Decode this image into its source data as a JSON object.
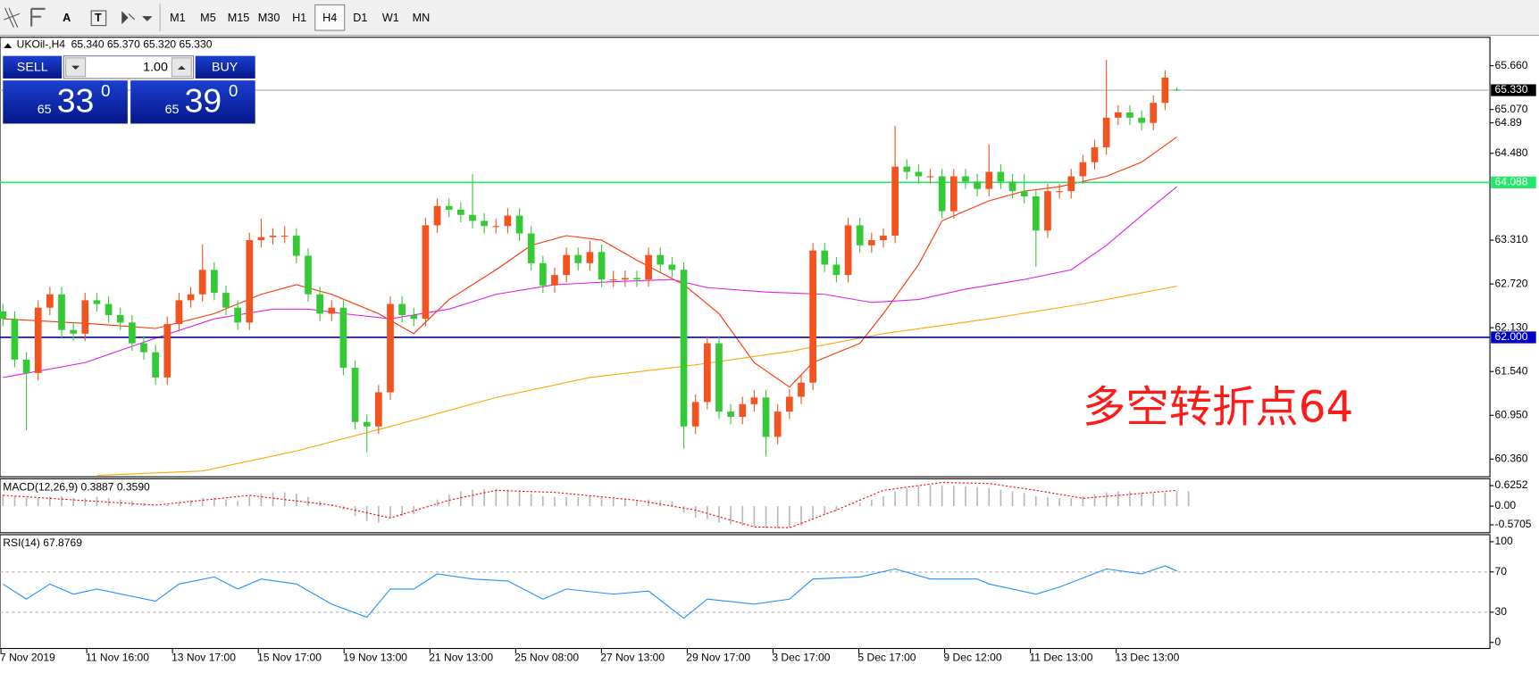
{
  "toolbar": {
    "tools": [
      "A",
      "T"
    ],
    "timeframes": [
      "M1",
      "M5",
      "M15",
      "M30",
      "H1",
      "H4",
      "D1",
      "W1",
      "MN"
    ],
    "active": "H4"
  },
  "header": {
    "symbol": "UKOil-,H4",
    "ohlc": "65.340 65.370 65.320 65.330"
  },
  "trade": {
    "sell": "SELL",
    "buy": "BUY",
    "volume": "1.00",
    "bid": {
      "big": "65",
      "main": "33",
      "sup": "0"
    },
    "ask": {
      "big": "65",
      "main": "39",
      "sup": "0"
    }
  },
  "chart_data": {
    "type": "candlestick",
    "categories": [
      "7 Nov 2019",
      "11 Nov 16:00",
      "13 Nov 17:00",
      "15 Nov 17:00",
      "19 Nov 13:00",
      "21 Nov 13:00",
      "25 Nov 08:00",
      "27 Nov 13:00",
      "29 Nov 17:00",
      "3 Dec 17:00",
      "5 Dec 17:00",
      "9 Dec 12:00",
      "11 Dec 13:00",
      "13 Dec 13:00"
    ],
    "up_color": "#f2531f",
    "down_color": "#36c936",
    "open": [
      62.35,
      62.25,
      61.7,
      61.52,
      62.4,
      62.58,
      62.1,
      62.05,
      62.5,
      62.45,
      62.3,
      62.2,
      61.92,
      61.8,
      61.46,
      62.18,
      62.5,
      62.58,
      62.91,
      62.6,
      62.4,
      62.2,
      63.31,
      63.35,
      63.37,
      63.37,
      63.1,
      62.58,
      62.32,
      62.4,
      61.59,
      60.86,
      60.8,
      61.26,
      62.45,
      62.3,
      62.25,
      63.51,
      63.77,
      63.72,
      63.65,
      63.57,
      63.5,
      63.5,
      63.64,
      63.4,
      63.0,
      62.7,
      62.84,
      63.11,
      63.0,
      63.15,
      62.78,
      62.78,
      62.8,
      62.78,
      63.11,
      62.98,
      62.91,
      60.8,
      61.13,
      61.92,
      61.0,
      60.93,
      61.1,
      61.19,
      60.66,
      61.0,
      61.2,
      61.39,
      63.17,
      62.98,
      62.84,
      63.51,
      63.24,
      63.31,
      63.37,
      64.3,
      64.23,
      64.17,
      64.17,
      63.7,
      64.17,
      64.1,
      64.0,
      64.23,
      64.1,
      63.97,
      63.9,
      63.44,
      63.97,
      63.97,
      64.17,
      64.36,
      64.56,
      64.96,
      65.03,
      64.96,
      64.89,
      65.16,
      65.34
    ],
    "high": [
      62.45,
      62.35,
      61.8,
      62.5,
      62.68,
      62.68,
      62.2,
      62.6,
      62.6,
      62.55,
      62.4,
      62.3,
      62.02,
      61.9,
      62.28,
      62.6,
      62.68,
      63.25,
      63.01,
      62.7,
      62.5,
      63.41,
      63.6,
      63.47,
      63.5,
      63.47,
      63.2,
      62.68,
      62.5,
      62.5,
      61.69,
      60.96,
      61.36,
      62.55,
      62.55,
      62.4,
      63.61,
      63.87,
      63.87,
      63.82,
      64.2,
      63.67,
      63.6,
      63.74,
      63.74,
      63.5,
      63.1,
      62.94,
      63.21,
      63.21,
      63.3,
      63.25,
      62.9,
      62.9,
      62.9,
      63.21,
      63.21,
      63.08,
      63.01,
      61.23,
      62.02,
      62.02,
      61.1,
      61.2,
      61.29,
      61.29,
      61.1,
      61.3,
      61.49,
      63.27,
      63.27,
      63.08,
      63.61,
      63.61,
      63.41,
      63.47,
      64.85,
      64.4,
      64.33,
      64.27,
      64.27,
      64.27,
      64.27,
      64.2,
      64.6,
      64.33,
      64.2,
      64.2,
      64.0,
      64.07,
      64.07,
      64.27,
      64.46,
      64.66,
      65.74,
      65.13,
      65.13,
      65.06,
      65.26,
      65.6,
      65.37
    ],
    "low": [
      62.15,
      61.6,
      60.75,
      61.42,
      62.3,
      62.0,
      61.95,
      61.95,
      62.35,
      62.2,
      62.1,
      61.82,
      61.7,
      61.36,
      61.36,
      62.08,
      62.4,
      62.48,
      62.5,
      62.3,
      62.1,
      62.1,
      63.21,
      63.25,
      63.27,
      63.0,
      62.48,
      62.22,
      62.22,
      61.49,
      60.76,
      60.45,
      60.7,
      61.16,
      62.2,
      62.15,
      62.15,
      63.41,
      63.62,
      63.55,
      63.47,
      63.4,
      63.4,
      63.4,
      63.3,
      62.9,
      62.6,
      62.6,
      62.74,
      62.9,
      62.9,
      62.68,
      62.68,
      62.68,
      62.68,
      62.68,
      62.88,
      62.81,
      60.5,
      60.7,
      61.03,
      60.9,
      60.83,
      60.83,
      61.0,
      60.4,
      60.56,
      60.9,
      61.1,
      61.29,
      62.88,
      62.74,
      62.74,
      63.14,
      63.14,
      63.21,
      63.27,
      64.13,
      64.07,
      64.07,
      63.6,
      63.6,
      64.0,
      63.9,
      63.9,
      64.0,
      63.87,
      63.8,
      62.95,
      63.34,
      63.87,
      63.87,
      64.07,
      64.26,
      64.46,
      64.86,
      64.86,
      64.79,
      64.79,
      65.06,
      65.32
    ],
    "close": [
      62.25,
      61.7,
      61.52,
      62.4,
      62.58,
      62.1,
      62.05,
      62.5,
      62.45,
      62.3,
      62.2,
      61.92,
      61.8,
      61.46,
      62.18,
      62.5,
      62.58,
      62.91,
      62.6,
      62.4,
      62.2,
      63.31,
      63.35,
      63.37,
      63.37,
      63.1,
      62.58,
      62.32,
      62.4,
      61.59,
      60.86,
      60.8,
      61.26,
      62.45,
      62.3,
      62.25,
      63.51,
      63.77,
      63.72,
      63.65,
      63.57,
      63.5,
      63.5,
      63.64,
      63.4,
      63.0,
      62.7,
      62.84,
      63.11,
      63.0,
      63.15,
      62.78,
      62.78,
      62.8,
      62.78,
      63.11,
      62.98,
      62.91,
      60.8,
      61.13,
      61.92,
      61.0,
      60.93,
      61.1,
      61.19,
      60.66,
      61.0,
      61.2,
      61.39,
      63.17,
      62.98,
      62.84,
      63.51,
      63.24,
      63.31,
      63.37,
      64.3,
      64.23,
      64.17,
      64.17,
      63.7,
      64.17,
      64.1,
      64.0,
      64.23,
      64.1,
      63.97,
      63.9,
      63.44,
      63.97,
      63.97,
      64.17,
      64.36,
      64.56,
      64.96,
      65.03,
      64.96,
      64.89,
      65.16,
      65.5,
      65.33
    ],
    "ma": [
      {
        "color": "#ff3300",
        "x": [
          0,
          8,
          13,
          18,
          22,
          25,
          28,
          32,
          35,
          38,
          42,
          45,
          48,
          51,
          54,
          58,
          61,
          64,
          67,
          69,
          73,
          75,
          78,
          80,
          84,
          87,
          90,
          94,
          97,
          100
        ],
        "values": [
          62.25,
          62.18,
          62.12,
          62.32,
          62.58,
          62.71,
          62.58,
          62.32,
          62.05,
          62.51,
          62.91,
          63.24,
          63.37,
          63.31,
          63.04,
          62.71,
          62.32,
          61.66,
          61.33,
          61.66,
          61.92,
          62.32,
          62.98,
          63.57,
          63.84,
          63.97,
          64.03,
          64.17,
          64.36,
          64.7
        ]
      },
      {
        "color": "#e21ee2",
        "x": [
          0,
          7,
          13,
          18,
          23,
          26,
          29,
          33,
          38,
          42,
          47,
          52,
          57,
          60,
          65,
          70,
          74,
          78,
          82,
          87,
          91,
          94,
          97,
          100
        ],
        "values": [
          61.46,
          61.66,
          61.99,
          62.25,
          62.38,
          62.38,
          62.32,
          62.25,
          62.38,
          62.58,
          62.71,
          62.75,
          62.78,
          62.67,
          62.61,
          62.58,
          62.47,
          62.51,
          62.65,
          62.78,
          62.91,
          63.24,
          63.64,
          64.03
        ]
      },
      {
        "color": "#ffa500",
        "x": [
          8,
          17,
          25,
          33,
          42,
          50,
          59,
          67,
          75,
          84,
          92,
          100
        ],
        "values": [
          60.14,
          60.2,
          60.47,
          60.8,
          61.19,
          61.46,
          61.63,
          61.81,
          62.05,
          62.25,
          62.45,
          62.69
        ]
      }
    ],
    "ylim": [
      60.135,
      66.043
    ],
    "yticks": [
      {
        "value": 65.66,
        "label": "65.660"
      },
      {
        "value": 65.07,
        "label": "65.070"
      },
      {
        "value": 64.48,
        "label": "64.480"
      },
      64.89,
      {
        "value": 63.31,
        "label": "63.310"
      },
      {
        "value": 62.72,
        "label": "62.720"
      },
      {
        "value": 62.13,
        "label": "62.130"
      },
      {
        "value": 61.54,
        "label": "61.540"
      },
      {
        "value": 60.95,
        "label": "60.950"
      },
      {
        "value": 60.36,
        "label": "60.360"
      }
    ],
    "levels": [
      {
        "value": 64.088,
        "color": "#22e86a"
      },
      {
        "value": 62,
        "label": "62.000",
        "color": "#0000c8"
      }
    ],
    "current": {
      "value": 65.33,
      "label": "65.330"
    },
    "annotation": "多空转折点64",
    "macd": {
      "label": "MACD(12,26,9) 0.3887 0.3590",
      "ylim": [
        -0.81,
        0.834
      ],
      "yticks": [
        0.6252,
        {
          "value": 0,
          "label": "0.00"
        },
        -0.5705
      ],
      "histogram": [
        0.35,
        0.3,
        0.25,
        0.25,
        0.3,
        0.3,
        0.25,
        0.25,
        0.28,
        0.25,
        0.2,
        0.15,
        0.1,
        0.0,
        0.05,
        0.12,
        0.18,
        0.25,
        0.25,
        0.2,
        0.15,
        0.3,
        0.38,
        0.42,
        0.42,
        0.38,
        0.28,
        0.15,
        0.05,
        -0.1,
        -0.3,
        -0.45,
        -0.5,
        -0.35,
        -0.3,
        -0.25,
        0.0,
        0.2,
        0.35,
        0.45,
        0.5,
        0.52,
        0.52,
        0.5,
        0.45,
        0.38,
        0.3,
        0.28,
        0.28,
        0.28,
        0.3,
        0.25,
        0.22,
        0.2,
        0.18,
        0.2,
        0.18,
        0.15,
        -0.2,
        -0.35,
        -0.4,
        -0.5,
        -0.55,
        -0.6,
        -0.62,
        -0.68,
        -0.68,
        -0.65,
        -0.6,
        -0.35,
        -0.25,
        -0.15,
        0.0,
        0.1,
        0.2,
        0.3,
        0.45,
        0.55,
        0.62,
        0.65,
        0.62,
        0.62,
        0.6,
        0.58,
        0.55,
        0.5,
        0.45,
        0.4,
        0.3,
        0.28,
        0.25,
        0.25,
        0.3,
        0.35,
        0.42,
        0.45,
        0.45,
        0.42,
        0.4,
        0.42,
        0.45,
        0.46
      ],
      "signal": {
        "x": [
          0,
          13,
          21,
          28,
          33,
          38,
          42,
          47,
          54,
          59,
          64,
          67,
          71,
          75,
          80,
          84,
          88,
          92,
          96,
          100
        ],
        "values": [
          0.33,
          0.03,
          0.33,
          0.03,
          -0.36,
          0.18,
          0.48,
          0.42,
          0.18,
          -0.12,
          -0.63,
          -0.66,
          -0.12,
          0.48,
          0.72,
          0.69,
          0.48,
          0.24,
          0.36,
          0.48
        ]
      }
    },
    "rsi": {
      "label": "RSI(14) 67.8769",
      "ylim": [
        -6,
        107
      ],
      "yticks": [
        100,
        70,
        30,
        0
      ],
      "levels": [
        70,
        30
      ],
      "color": "#1e90ff",
      "x": [
        0,
        2,
        4,
        6,
        8,
        13,
        15,
        18,
        20,
        22,
        25,
        28,
        31,
        33,
        35,
        37,
        40,
        43,
        46,
        48,
        52,
        55,
        58,
        60,
        64,
        67,
        69,
        73,
        76,
        79,
        83,
        84,
        88,
        90,
        94,
        97,
        99,
        100
      ],
      "values": [
        58,
        43,
        58,
        48,
        53,
        41,
        58,
        65,
        53,
        63,
        58,
        38,
        25,
        53,
        53,
        68,
        63,
        61,
        43,
        53,
        48,
        51,
        24,
        43,
        38,
        43,
        63,
        65,
        73,
        63,
        63,
        58,
        48,
        55,
        73,
        68,
        76,
        71
      ]
    }
  }
}
